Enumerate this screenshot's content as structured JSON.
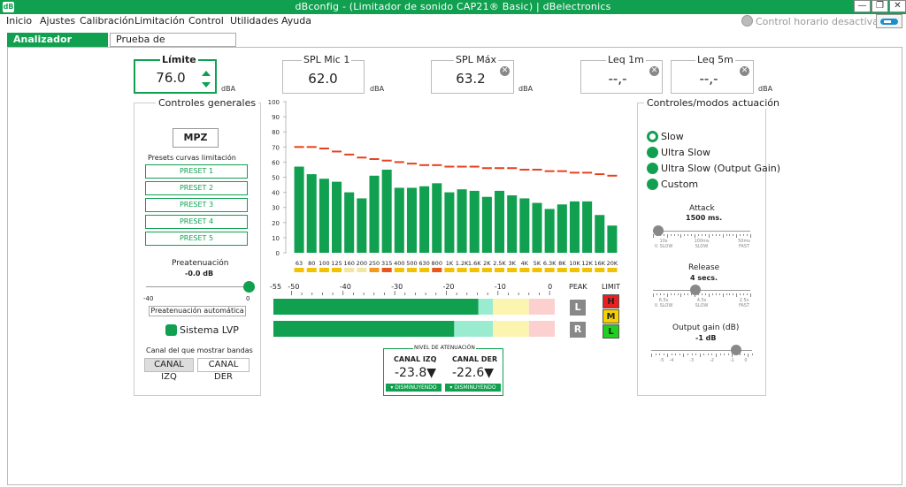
{
  "app": {
    "title": "dBconfig - (Limitador de sonido CAP21® Basic) | dBelectronics",
    "icon_letter": "dB"
  },
  "window_buttons": {
    "minimize": "—",
    "restore": "❐",
    "close": "✕"
  },
  "menu": [
    "Inicio",
    "Ajustes",
    "Calibración",
    "Limitación",
    "Control",
    "Utilidades",
    "Ayuda"
  ],
  "control_horario": "Control horario desactivado",
  "tabs": [
    "Analizador espectral",
    "Prueba de funcionamiento"
  ],
  "meters": {
    "limite": {
      "label": "Límite",
      "value": "76.0",
      "unit": "dBA"
    },
    "spl_mic1": {
      "label": "SPL Mic 1",
      "value": "62.0",
      "unit": "dBA"
    },
    "spl_max": {
      "label": "SPL Máx",
      "value": "63.2",
      "unit": "dBA"
    },
    "leq1m": {
      "label": "Leq 1m",
      "value": "--,-",
      "unit": ""
    },
    "leq5m": {
      "label": "Leq 5m",
      "value": "--,-",
      "unit": "dBA"
    }
  },
  "general": {
    "legend": "Controles generales",
    "mpz": "MPZ",
    "presets_title": "Presets curvas limitación",
    "presets": [
      "PRESET 1",
      "PRESET 2",
      "PRESET 3",
      "PRESET 4",
      "PRESET 5"
    ],
    "preatenuacion_label": "Preatenuación",
    "preatenuacion_value": "-0.0 dB",
    "preatenuacion_fraction": 1.0,
    "slider_min": "-40",
    "slider_max": "0",
    "auto_button": "Preatenuación automática",
    "lvp_label": "Sistema LVP",
    "canal_title": "Canal del que mostrar bandas",
    "canal_izq": "CANAL IZQ",
    "canal_der": "CANAL DER"
  },
  "chart_data": {
    "type": "bar",
    "ylim": [
      0,
      100
    ],
    "yticks": [
      0,
      10,
      20,
      30,
      40,
      50,
      60,
      70,
      80,
      90,
      100
    ],
    "categories": [
      "63",
      "80",
      "100",
      "125",
      "160",
      "200",
      "250",
      "315",
      "400",
      "500",
      "630",
      "800",
      "1K",
      "1.2K",
      "1.6K",
      "2K",
      "2.5K",
      "3K",
      "4K",
      "5K",
      "6.3K",
      "8K",
      "10K",
      "12K",
      "16K",
      "20K"
    ],
    "series": [
      {
        "type": "bar",
        "values": [
          57,
          52,
          49,
          47,
          40,
          36,
          51,
          55,
          43,
          43,
          44,
          46,
          40,
          42,
          41,
          37,
          41,
          38,
          36,
          33,
          29,
          32,
          34,
          34,
          25,
          18
        ]
      },
      {
        "type": "line",
        "values": [
          70,
          70,
          69,
          67,
          65,
          63,
          62,
          61,
          60,
          59,
          58,
          58,
          57,
          57,
          57,
          56,
          56,
          56,
          55,
          55,
          54,
          54,
          53,
          53,
          52,
          51
        ]
      }
    ],
    "indicator_colors": [
      "#f2c200",
      "#f2c200",
      "#f2c200",
      "#f2c200",
      "#f2e6a0",
      "#f2e6a0",
      "#f29a1a",
      "#e8561c",
      "#f2c200",
      "#f2c200",
      "#f2c200",
      "#e8561c",
      "#f2c200",
      "#f2c200",
      "#f2c200",
      "#f2c200",
      "#f2c200",
      "#f2c200",
      "#f2c200",
      "#f2c200",
      "#f2c200",
      "#f2c200",
      "#f2c200",
      "#f2c200",
      "#f2c200",
      "#f2c200"
    ]
  },
  "colors": {
    "brand": "#10a050",
    "bar": "#10a050",
    "limit_line": "#e8401c"
  },
  "vu": {
    "scale": [
      "-55",
      "-50",
      "-40",
      "-30",
      "-20",
      "-10",
      "0"
    ],
    "peak_label": "PEAK",
    "limit_label": "LIMIT",
    "channels": [
      {
        "label": "L",
        "level_db": -13.8
      },
      {
        "label": "R",
        "level_db": -18.5
      }
    ],
    "zones": [
      {
        "to_db": -13.8,
        "color": "#10a050"
      },
      {
        "to_db": -11,
        "color": "#99ecd0"
      },
      {
        "to_db": -4,
        "color": "#fbf5b0"
      },
      {
        "to_db": 1,
        "color": "#fdd0d0"
      }
    ],
    "limit_indicators": [
      {
        "label": "H",
        "color": "#e82020"
      },
      {
        "label": "M",
        "color": "#f5d000"
      },
      {
        "label": "L",
        "color": "#20d020"
      }
    ]
  },
  "attenuation": {
    "title": "NIVEL DE ATENUACIÓN",
    "left_label": "CANAL IZQ",
    "left_value": "-23.8▼",
    "left_button": "▾ DISMINUYENDO",
    "right_label": "CANAL DER",
    "right_value": "-22.6▼",
    "right_button": "▾ DISMINUYENDO"
  },
  "actuation": {
    "legend": "Controles/modos actuación",
    "modes": [
      "Slow",
      "Ultra Slow",
      "Ultra Slow (Output Gain)",
      "Custom"
    ],
    "selected_mode": "Slow",
    "attack_label": "Attack",
    "attack_value": "1500 ms.",
    "attack_fraction": 0.05,
    "attack_ticks": [
      "10s\nV. SLOW",
      "100ms\nSLOW",
      "50ms\nFAST"
    ],
    "release_label": "Release",
    "release_value": "4 secs.",
    "release_fraction": 0.44,
    "release_ticks": [
      "6.5s\nV. SLOW",
      "4.5s\nSLOW",
      "2.5s\nFAST"
    ],
    "gain_label": "Output gain (dB)",
    "gain_value": "-1 dB",
    "gain_fraction": 0.84,
    "gain_ticks": [
      "-5",
      "-4",
      "-3",
      "-2",
      "-1",
      "0"
    ]
  }
}
